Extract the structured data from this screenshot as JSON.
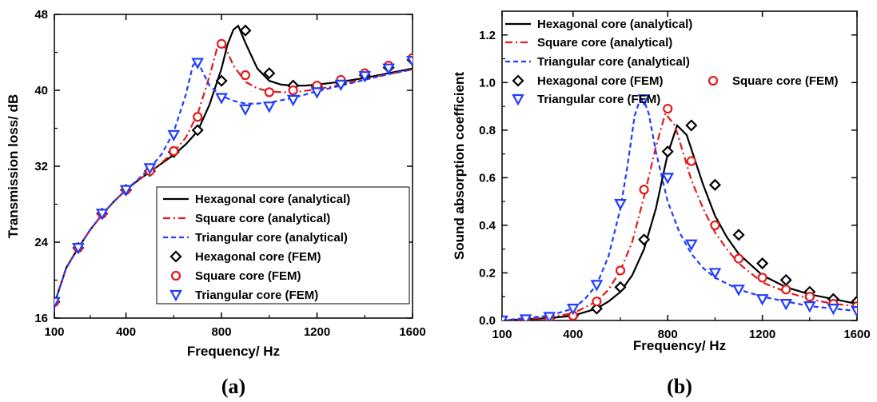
{
  "chart_data": [
    {
      "type": "line",
      "panel_label": "(a)",
      "xlabel": "Frequency/ Hz",
      "ylabel": "Transmission loss/ dB",
      "xlim": [
        100,
        1600
      ],
      "ylim": [
        16,
        48
      ],
      "xticks": [
        100,
        400,
        800,
        1200,
        1600
      ],
      "yticks": [
        16,
        24,
        32,
        40,
        48
      ],
      "legend_position": "bottom-right",
      "series": [
        {
          "name": "Hexagonal core (analytical)",
          "kind": "line",
          "style": "solid",
          "color": "#000000",
          "x": [
            100,
            150,
            200,
            250,
            300,
            350,
            400,
            450,
            500,
            550,
            600,
            650,
            700,
            750,
            800,
            825,
            850,
            870,
            900,
            950,
            1000,
            1050,
            1100,
            1150,
            1200,
            1300,
            1400,
            1500,
            1600
          ],
          "y": [
            17.5,
            21.3,
            23.4,
            25.3,
            26.9,
            28.3,
            29.5,
            30.5,
            31.4,
            32.3,
            33.2,
            34.3,
            35.7,
            38.5,
            42.3,
            44.8,
            46.4,
            46.8,
            45.0,
            42.3,
            41.0,
            40.6,
            40.5,
            40.5,
            40.6,
            40.9,
            41.3,
            41.8,
            42.3
          ]
        },
        {
          "name": "Square core (analytical)",
          "kind": "line",
          "style": "dashdot",
          "color": "#e31a1c",
          "x": [
            100,
            150,
            200,
            250,
            300,
            350,
            400,
            450,
            500,
            550,
            600,
            650,
            700,
            750,
            780,
            800,
            820,
            850,
            900,
            950,
            1000,
            1050,
            1100,
            1200,
            1300,
            1400,
            1500,
            1600
          ],
          "y": [
            17.5,
            21.3,
            23.4,
            25.3,
            26.9,
            28.3,
            29.5,
            30.5,
            31.4,
            32.4,
            33.5,
            35.0,
            37.5,
            41.5,
            44.3,
            45.0,
            44.3,
            42.6,
            40.9,
            40.2,
            39.9,
            39.8,
            39.8,
            40.1,
            40.6,
            41.2,
            41.7,
            42.2
          ]
        },
        {
          "name": "Triangular core (analytical)",
          "kind": "line",
          "style": "dashed",
          "color": "#1f3cff",
          "x": [
            100,
            150,
            200,
            250,
            300,
            350,
            400,
            450,
            500,
            550,
            600,
            650,
            680,
            700,
            720,
            750,
            800,
            850,
            900,
            950,
            1000,
            1100,
            1200,
            1300,
            1400,
            1500,
            1600
          ],
          "y": [
            17.5,
            21.3,
            23.4,
            25.3,
            26.9,
            28.3,
            29.5,
            30.6,
            31.8,
            33.3,
            35.6,
            39.5,
            42.6,
            43.1,
            42.0,
            40.5,
            39.4,
            38.9,
            38.6,
            38.6,
            38.7,
            39.2,
            39.9,
            40.5,
            41.1,
            41.7,
            42.2
          ]
        },
        {
          "name": "Hexagonal core (FEM)",
          "kind": "marker",
          "marker": "diamond",
          "color": "#000000",
          "x": [
            100,
            200,
            300,
            400,
            500,
            600,
            700,
            800,
            900,
            1000,
            1100,
            1200,
            1300,
            1400,
            1500,
            1600
          ],
          "y": [
            17.7,
            23.4,
            27.0,
            29.5,
            31.5,
            33.5,
            35.8,
            41.0,
            46.3,
            41.8,
            40.5,
            40.4,
            40.8,
            41.6,
            42.4,
            43.2
          ]
        },
        {
          "name": "Square core (FEM)",
          "kind": "marker",
          "marker": "circle",
          "color": "#e31a1c",
          "x": [
            100,
            200,
            300,
            400,
            500,
            600,
            700,
            800,
            900,
            1000,
            1100,
            1200,
            1300,
            1400,
            1500,
            1600
          ],
          "y": [
            17.7,
            23.4,
            27.0,
            29.5,
            31.5,
            33.6,
            37.2,
            44.9,
            41.6,
            39.8,
            40.0,
            40.5,
            41.1,
            41.8,
            42.6,
            43.4
          ]
        },
        {
          "name": "Triangular core (FEM)",
          "kind": "marker",
          "marker": "triangle-down",
          "color": "#1f3cff",
          "x": [
            100,
            200,
            300,
            400,
            500,
            600,
            700,
            800,
            900,
            1000,
            1100,
            1200,
            1300,
            1400,
            1500,
            1600
          ],
          "y": [
            17.7,
            23.4,
            27.0,
            29.5,
            31.8,
            35.3,
            42.9,
            39.2,
            38.0,
            38.3,
            39.0,
            39.8,
            40.6,
            41.5,
            42.3,
            43.1
          ]
        }
      ]
    },
    {
      "type": "line",
      "panel_label": "(b)",
      "xlabel": "Frequency/ Hz",
      "ylabel": "Sound absorption coefficient",
      "xlim": [
        100,
        1600
      ],
      "ylim": [
        0,
        1.3
      ],
      "xticks": [
        100,
        400,
        800,
        1200,
        1600
      ],
      "yticks": [
        0.0,
        0.2,
        0.4,
        0.6,
        0.8,
        1.0,
        1.2
      ],
      "ytick_labels": [
        "0.0",
        "0.2",
        "0.4",
        "0.6",
        "0.8",
        "1.0",
        "1.2"
      ],
      "legend_position": "top-left",
      "series": [
        {
          "name": "Hexagonal core (analytical)",
          "kind": "line",
          "style": "solid",
          "color": "#000000",
          "x": [
            100,
            200,
            300,
            400,
            500,
            550,
            600,
            650,
            700,
            750,
            800,
            840,
            880,
            920,
            950,
            1000,
            1050,
            1100,
            1200,
            1300,
            1400,
            1500,
            1600
          ],
          "y": [
            0.0,
            0.005,
            0.01,
            0.02,
            0.05,
            0.08,
            0.12,
            0.19,
            0.3,
            0.47,
            0.7,
            0.82,
            0.78,
            0.66,
            0.57,
            0.44,
            0.35,
            0.28,
            0.19,
            0.14,
            0.11,
            0.09,
            0.07
          ]
        },
        {
          "name": "Square core (analytical)",
          "kind": "line",
          "style": "dashdot",
          "color": "#e31a1c",
          "x": [
            100,
            200,
            300,
            400,
            500,
            550,
            600,
            650,
            700,
            750,
            790,
            830,
            870,
            900,
            950,
            1000,
            1050,
            1100,
            1200,
            1300,
            1400,
            1500,
            1600
          ],
          "y": [
            0.0,
            0.005,
            0.015,
            0.03,
            0.08,
            0.13,
            0.21,
            0.33,
            0.52,
            0.73,
            0.87,
            0.82,
            0.69,
            0.59,
            0.47,
            0.37,
            0.3,
            0.24,
            0.16,
            0.12,
            0.09,
            0.07,
            0.06
          ]
        },
        {
          "name": "Triangular core (analytical)",
          "kind": "line",
          "style": "dashed",
          "color": "#1f3cff",
          "x": [
            100,
            200,
            300,
            400,
            450,
            500,
            550,
            600,
            630,
            660,
            690,
            720,
            750,
            800,
            850,
            900,
            950,
            1000,
            1100,
            1200,
            1300,
            1400,
            1500,
            1600
          ],
          "y": [
            0.0,
            0.01,
            0.02,
            0.05,
            0.09,
            0.15,
            0.27,
            0.47,
            0.65,
            0.86,
            0.95,
            0.87,
            0.71,
            0.5,
            0.37,
            0.28,
            0.22,
            0.18,
            0.13,
            0.1,
            0.08,
            0.06,
            0.05,
            0.04
          ]
        },
        {
          "name": "Hexagonal core (FEM)",
          "kind": "marker",
          "marker": "diamond",
          "color": "#000000",
          "x": [
            200,
            300,
            400,
            500,
            600,
            700,
            800,
            900,
            1000,
            1100,
            1200,
            1300,
            1400,
            1500,
            1600
          ],
          "y": [
            0.0,
            0.01,
            0.02,
            0.05,
            0.14,
            0.34,
            0.71,
            0.82,
            0.57,
            0.36,
            0.24,
            0.17,
            0.12,
            0.09,
            0.08
          ]
        },
        {
          "name": "Square core (FEM)",
          "kind": "marker",
          "marker": "circle",
          "color": "#e31a1c",
          "x": [
            200,
            300,
            400,
            500,
            600,
            700,
            800,
            900,
            1000,
            1100,
            1200,
            1300,
            1400,
            1500,
            1600
          ],
          "y": [
            0.0,
            0.01,
            0.02,
            0.08,
            0.21,
            0.55,
            0.89,
            0.67,
            0.4,
            0.26,
            0.18,
            0.13,
            0.1,
            0.07,
            0.06
          ]
        },
        {
          "name": "Triangular core (FEM)",
          "kind": "marker",
          "marker": "triangle-down",
          "color": "#1f3cff",
          "x": [
            100,
            200,
            300,
            400,
            500,
            600,
            700,
            800,
            900,
            1000,
            1100,
            1200,
            1300,
            1400,
            1500,
            1600
          ],
          "y": [
            0.0,
            0.005,
            0.015,
            0.05,
            0.15,
            0.49,
            0.93,
            0.6,
            0.32,
            0.2,
            0.13,
            0.09,
            0.07,
            0.06,
            0.05,
            0.04
          ]
        }
      ]
    }
  ]
}
